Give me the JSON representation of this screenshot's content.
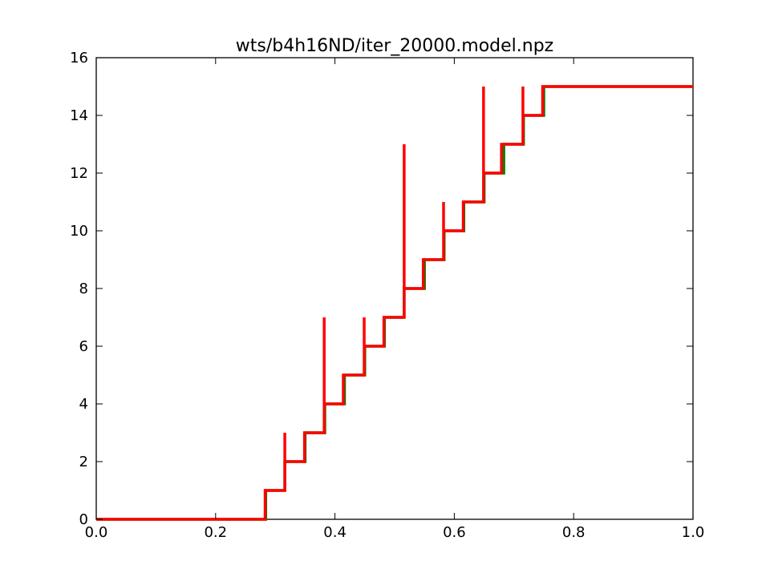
{
  "chart_data": {
    "type": "line",
    "title": "wts/b4h16ND/iter_20000.model.npz",
    "xlabel": "",
    "ylabel": "",
    "xlim": [
      0.0,
      1.0
    ],
    "ylim": [
      0,
      16
    ],
    "xticks": [
      0.0,
      0.2,
      0.4,
      0.6,
      0.8,
      1.0
    ],
    "xtick_labels": [
      "0.0",
      "0.2",
      "0.4",
      "0.6",
      "0.8",
      "1.0"
    ],
    "yticks": [
      0,
      2,
      4,
      6,
      8,
      10,
      12,
      14,
      16
    ],
    "ytick_labels": [
      "0",
      "2",
      "4",
      "6",
      "8",
      "10",
      "12",
      "14",
      "16"
    ],
    "grid": false,
    "legend": "none",
    "series": [
      {
        "color": "#008000",
        "points": [
          [
            0.0,
            0
          ],
          [
            0.284,
            0
          ],
          [
            0.284,
            1
          ],
          [
            0.316,
            1
          ],
          [
            0.316,
            2
          ],
          [
            0.35,
            2
          ],
          [
            0.35,
            3
          ],
          [
            0.383,
            3
          ],
          [
            0.383,
            4
          ],
          [
            0.416,
            4
          ],
          [
            0.416,
            5
          ],
          [
            0.45,
            5
          ],
          [
            0.45,
            6
          ],
          [
            0.483,
            6
          ],
          [
            0.483,
            7
          ],
          [
            0.516,
            7
          ],
          [
            0.516,
            8
          ],
          [
            0.55,
            8
          ],
          [
            0.55,
            9
          ],
          [
            0.583,
            9
          ],
          [
            0.583,
            10
          ],
          [
            0.616,
            10
          ],
          [
            0.616,
            11
          ],
          [
            0.65,
            11
          ],
          [
            0.65,
            12
          ],
          [
            0.683,
            12
          ],
          [
            0.683,
            13
          ],
          [
            0.716,
            13
          ],
          [
            0.716,
            14
          ],
          [
            0.75,
            14
          ],
          [
            0.75,
            15
          ],
          [
            1.0,
            15
          ]
        ]
      },
      {
        "color": "#ff0000",
        "points": [
          [
            0.0,
            0
          ],
          [
            0.283,
            0
          ],
          [
            0.283,
            1
          ],
          [
            0.316,
            1
          ],
          [
            0.316,
            3
          ],
          [
            0.316,
            2
          ],
          [
            0.349,
            2
          ],
          [
            0.349,
            3
          ],
          [
            0.382,
            3
          ],
          [
            0.382,
            7
          ],
          [
            0.382,
            4
          ],
          [
            0.414,
            4
          ],
          [
            0.414,
            5
          ],
          [
            0.449,
            5
          ],
          [
            0.449,
            7
          ],
          [
            0.449,
            6
          ],
          [
            0.482,
            6
          ],
          [
            0.482,
            7
          ],
          [
            0.516,
            7
          ],
          [
            0.516,
            13
          ],
          [
            0.516,
            8
          ],
          [
            0.548,
            8
          ],
          [
            0.548,
            9
          ],
          [
            0.582,
            9
          ],
          [
            0.582,
            11
          ],
          [
            0.582,
            10
          ],
          [
            0.615,
            10
          ],
          [
            0.615,
            11
          ],
          [
            0.649,
            11
          ],
          [
            0.649,
            15
          ],
          [
            0.649,
            12
          ],
          [
            0.679,
            12
          ],
          [
            0.679,
            13
          ],
          [
            0.715,
            13
          ],
          [
            0.715,
            15
          ],
          [
            0.715,
            14
          ],
          [
            0.748,
            14
          ],
          [
            0.748,
            15
          ],
          [
            1.0,
            15
          ]
        ]
      }
    ]
  }
}
